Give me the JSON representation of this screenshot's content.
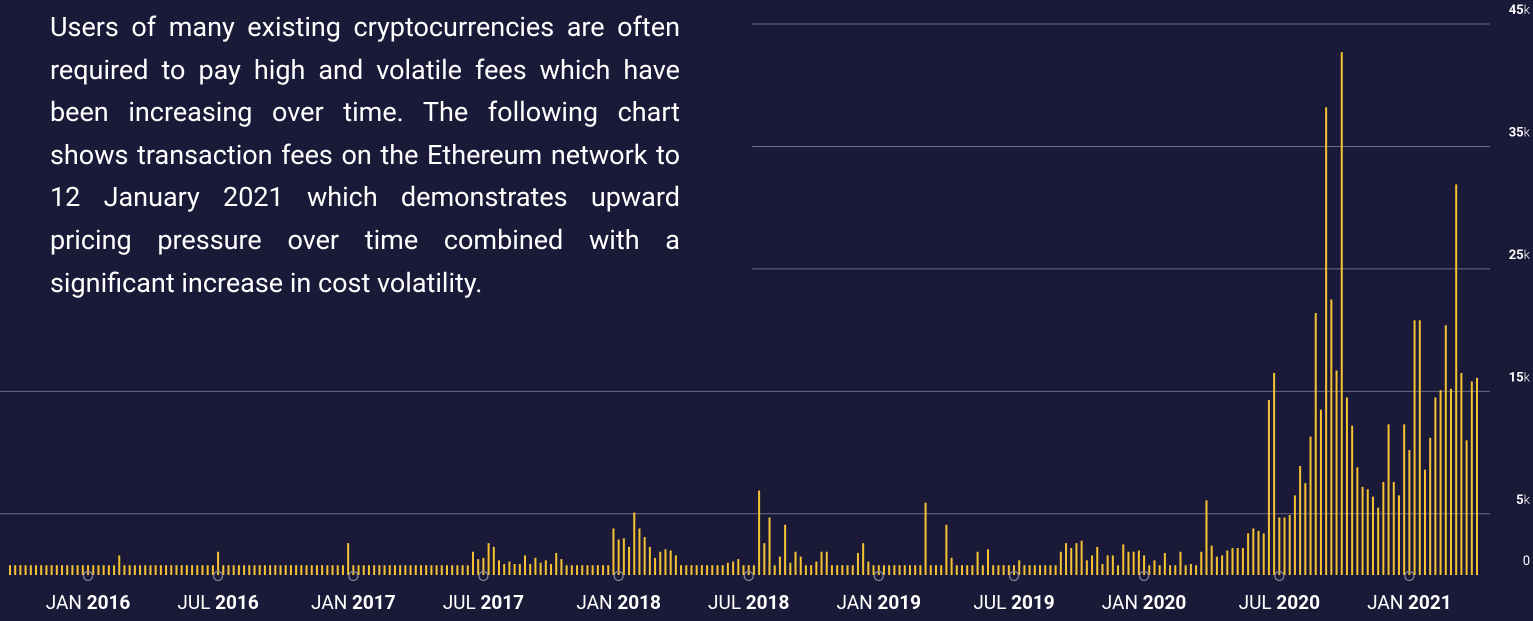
{
  "intro": "Users of many existing cryptocurrencies are often required to pay high and volatile fees which have been increasing over time. The following chart shows transaction fees on the Ethereum network to 12 January 2021 which demonstrates upward pricing pressure over time combined with a significant increase in cost volatility.",
  "chart_data": {
    "type": "bar",
    "categories": [
      null,
      null,
      null,
      null,
      null,
      null,
      null,
      null,
      null,
      null,
      null,
      null,
      null,
      null,
      null,
      "JAN 2016",
      null,
      null,
      null,
      null,
      null,
      null,
      null,
      null,
      null,
      null,
      null,
      null,
      null,
      null,
      null,
      null,
      null,
      null,
      null,
      null,
      null,
      null,
      null,
      null,
      "JUL 2016",
      null,
      null,
      null,
      null,
      null,
      null,
      null,
      null,
      null,
      null,
      null,
      null,
      null,
      null,
      null,
      null,
      null,
      null,
      null,
      null,
      null,
      null,
      null,
      null,
      null,
      "JAN 2017",
      null,
      null,
      null,
      null,
      null,
      null,
      null,
      null,
      null,
      null,
      null,
      null,
      null,
      null,
      null,
      null,
      null,
      null,
      null,
      null,
      null,
      null,
      null,
      null,
      "JUL 2017",
      null,
      null,
      null,
      null,
      null,
      null,
      null,
      null,
      null,
      null,
      null,
      null,
      null,
      null,
      null,
      null,
      null,
      null,
      null,
      null,
      null,
      null,
      null,
      null,
      null,
      "JAN 2018",
      null,
      null,
      null,
      null,
      null,
      null,
      null,
      null,
      null,
      null,
      null,
      null,
      null,
      null,
      null,
      null,
      null,
      null,
      null,
      null,
      null,
      null,
      null,
      null,
      "JUL 2018",
      null,
      null,
      null,
      null,
      null,
      null,
      null,
      null,
      null,
      null,
      null,
      null,
      null,
      null,
      null,
      null,
      null,
      null,
      null,
      null,
      null,
      null,
      null,
      null,
      "JAN 2019",
      null,
      null,
      null,
      null,
      null,
      null,
      null,
      null,
      null,
      null,
      null,
      null,
      null,
      null,
      null,
      null,
      null,
      null,
      null,
      null,
      null,
      null,
      null,
      null,
      null,
      "JUL 2019",
      null,
      null,
      null,
      null,
      null,
      null,
      null,
      null,
      null,
      null,
      null,
      null,
      null,
      null,
      null,
      null,
      null,
      null,
      null,
      null,
      null,
      null,
      null,
      null,
      "JAN 2020",
      null,
      null,
      null,
      null,
      null,
      null,
      null,
      null,
      null,
      null,
      null,
      null,
      null,
      null,
      null,
      null,
      null,
      null,
      null,
      null,
      null,
      null,
      null,
      null,
      null,
      "JUL 2020",
      null,
      null,
      null,
      null,
      null,
      null,
      null,
      null,
      null,
      null,
      null,
      null,
      null,
      null,
      null,
      null,
      null,
      null,
      null,
      null,
      null,
      null,
      null,
      null,
      "JAN 2021",
      null,
      null,
      null,
      null,
      null,
      null,
      null,
      null,
      null,
      null,
      null,
      null,
      null
    ],
    "values": [
      800,
      800,
      800,
      800,
      800,
      800,
      800,
      800,
      800,
      800,
      800,
      800,
      800,
      800,
      800,
      800,
      800,
      800,
      800,
      800,
      800,
      1600,
      800,
      800,
      800,
      800,
      800,
      800,
      800,
      800,
      800,
      800,
      800,
      800,
      800,
      800,
      800,
      800,
      800,
      800,
      1900,
      800,
      800,
      800,
      800,
      800,
      800,
      800,
      800,
      800,
      800,
      800,
      800,
      800,
      800,
      800,
      800,
      800,
      800,
      800,
      800,
      800,
      800,
      800,
      800,
      2600,
      800,
      800,
      800,
      800,
      800,
      800,
      800,
      800,
      800,
      800,
      800,
      800,
      800,
      800,
      800,
      800,
      800,
      800,
      800,
      800,
      800,
      800,
      800,
      1900,
      1300,
      1400,
      2600,
      2300,
      1200,
      900,
      1100,
      900,
      900,
      1600,
      900,
      1400,
      1000,
      1200,
      900,
      1800,
      1300,
      800,
      800,
      800,
      800,
      800,
      800,
      800,
      800,
      800,
      3800,
      2900,
      3000,
      2300,
      5100,
      3800,
      3100,
      2300,
      1400,
      1900,
      2100,
      2000,
      1600,
      800,
      800,
      800,
      800,
      800,
      800,
      800,
      800,
      800,
      1000,
      1100,
      1300,
      800,
      800,
      800,
      6900,
      2600,
      4700,
      800,
      1500,
      4100,
      1000,
      1900,
      1500,
      800,
      800,
      1100,
      1900,
      1900,
      800,
      800,
      800,
      800,
      800,
      1800,
      2600,
      1100,
      800,
      800,
      800,
      800,
      800,
      800,
      800,
      800,
      800,
      800,
      5900,
      800,
      800,
      800,
      4100,
      1400,
      800,
      800,
      800,
      800,
      1900,
      800,
      2100,
      800,
      800,
      800,
      800,
      800,
      1200,
      800,
      800,
      800,
      800,
      800,
      800,
      800,
      1900,
      2600,
      2200,
      2600,
      2800,
      1200,
      1600,
      2300,
      900,
      1600,
      1600,
      800,
      2500,
      1900,
      1900,
      2000,
      1600,
      800,
      1200,
      800,
      1800,
      800,
      800,
      1900,
      800,
      900,
      800,
      1900,
      6100,
      2400,
      1500,
      1600,
      2000,
      2200,
      2200,
      2200,
      3400,
      3800,
      3600,
      3400,
      14300,
      16500,
      4700,
      4700,
      4900,
      6500,
      8900,
      7500,
      11300,
      21400,
      13500,
      38200,
      22500,
      16700,
      42700,
      14500,
      12200,
      8800,
      7200,
      7000,
      6400,
      5500,
      7600,
      12300,
      7600,
      6500,
      12300,
      10200,
      20800,
      20800,
      8600,
      11200,
      14500,
      15100,
      20400,
      15200,
      31900,
      16500,
      11000,
      15800,
      16100
    ],
    "color": "#f5c232",
    "ylim": [
      0,
      45000
    ],
    "yticks": [
      0,
      {
        "value": 5000,
        "label": "5k"
      },
      {
        "value": 15000,
        "label": "15k"
      },
      {
        "value": 25000,
        "label": "25k"
      },
      {
        "value": 35000,
        "label": "35k"
      },
      {
        "value": 45000,
        "label": "45k"
      }
    ],
    "grid": true
  }
}
